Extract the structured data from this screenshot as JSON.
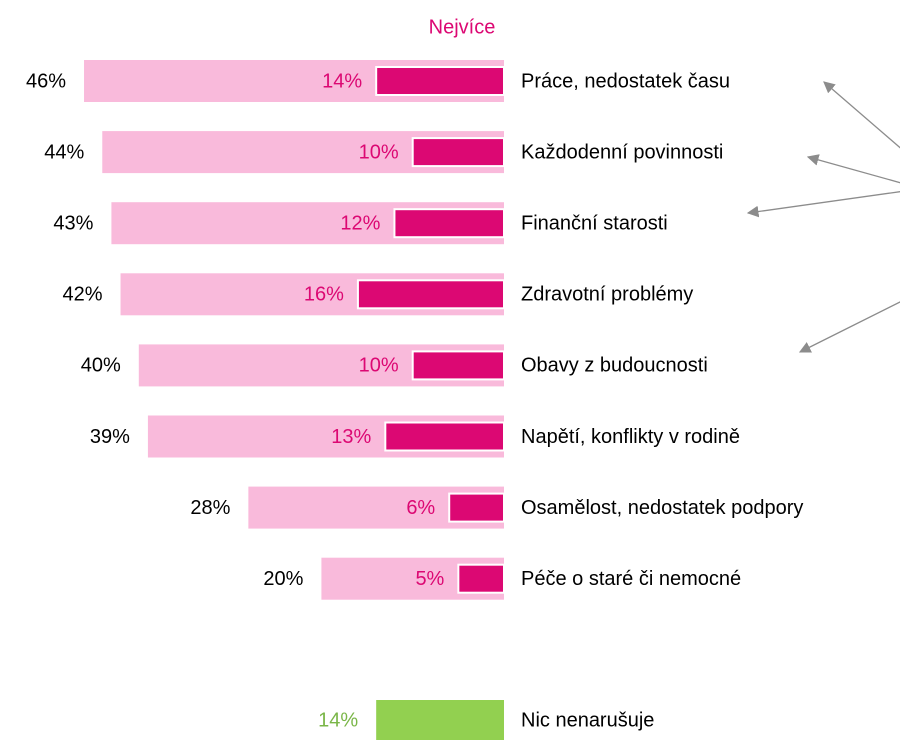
{
  "chart_data": {
    "type": "bar",
    "categories": [
      "Práce, nedostatek času",
      "Každodenní povinnosti",
      "Finanční starosti",
      "Zdravotní problémy",
      "Obavy z budoucnosti",
      "Napětí, konflikty v rodině",
      "Osamělost, nedostatek podpory",
      "Péče o staré či nemocné"
    ],
    "series": [
      {
        "color": "#f9badb",
        "values": [
          46,
          44,
          43,
          42,
          40,
          39,
          28,
          20
        ],
        "value_labels": [
          "46%",
          "44%",
          "43%",
          "42%",
          "40%",
          "39%",
          "28%",
          "20%"
        ]
      },
      {
        "name": "Nejvíce",
        "color": "#dc0873",
        "values": [
          14,
          10,
          12,
          16,
          10,
          13,
          6,
          5
        ],
        "value_labels": [
          "14%",
          "10%",
          "12%",
          "16%",
          "10%",
          "13%",
          "6%",
          "5%"
        ]
      }
    ],
    "extra": {
      "category": "Nic nenarušuje",
      "value": 14,
      "value_label": "14%",
      "color": "#92d050",
      "label_color": "#7ab648"
    }
  }
}
